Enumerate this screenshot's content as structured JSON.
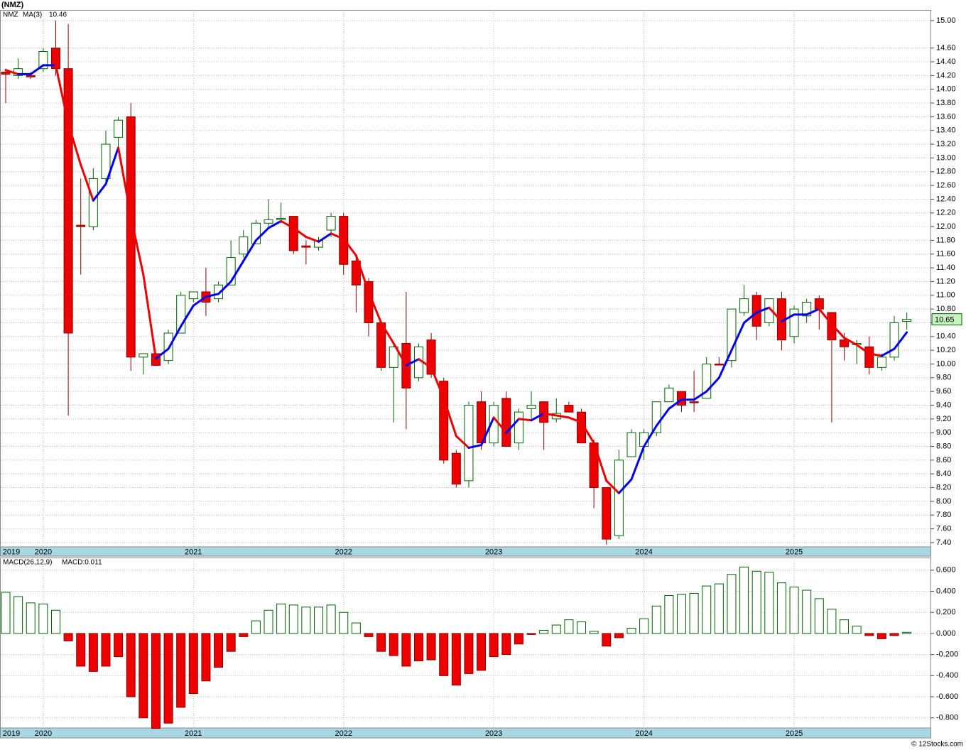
{
  "chart_data": [
    {
      "type": "candlestick",
      "title": "(NMZ)",
      "symbol": "NMZ",
      "categories": [
        "2019",
        null,
        null,
        "2020",
        null,
        null,
        null,
        null,
        null,
        null,
        null,
        null,
        null,
        null,
        null,
        "2021",
        null,
        null,
        null,
        null,
        null,
        null,
        null,
        null,
        null,
        null,
        null,
        "2022",
        null,
        null,
        null,
        null,
        null,
        null,
        null,
        null,
        null,
        null,
        null,
        "2023",
        null,
        null,
        null,
        null,
        null,
        null,
        null,
        null,
        null,
        null,
        null,
        "2024",
        null,
        null,
        null,
        null,
        null,
        null,
        null,
        null,
        null,
        null,
        null,
        "2025",
        null,
        null,
        null,
        null,
        null,
        null,
        null,
        null,
        null
      ],
      "open": [
        14.25,
        14.2,
        14.2,
        14.3,
        14.6,
        14.3,
        12.02,
        12.0,
        12.7,
        13.3,
        13.6,
        10.1,
        10.15,
        10.05,
        10.45,
        10.95,
        11.05,
        10.95,
        11.15,
        11.6,
        11.75,
        12.05,
        12.1,
        12.15,
        11.72,
        11.7,
        11.95,
        12.15,
        11.5,
        11.2,
        10.6,
        9.95,
        10.3,
        9.8,
        10.35,
        9.75,
        8.7,
        8.3,
        9.45,
        8.85,
        9.5,
        8.85,
        9.35,
        9.45,
        9.2,
        9.4,
        9.3,
        8.85,
        8.2,
        7.5,
        8.65,
        8.8,
        9.0,
        9.45,
        9.6,
        9.45,
        9.5,
        10.0,
        10.05,
        10.75,
        11.0,
        10.6,
        10.95,
        10.4,
        10.7,
        10.95,
        10.75,
        10.35,
        10.28,
        10.25,
        9.95,
        10.1,
        10.62
      ],
      "high": [
        14.3,
        14.45,
        14.25,
        14.6,
        15.0,
        14.95,
        12.7,
        12.85,
        13.4,
        13.6,
        13.8,
        10.15,
        10.15,
        10.5,
        11.05,
        11.05,
        11.4,
        11.2,
        11.8,
        11.95,
        12.1,
        12.4,
        12.35,
        12.15,
        11.8,
        11.85,
        12.2,
        12.2,
        11.55,
        11.25,
        10.6,
        10.3,
        11.05,
        10.3,
        10.45,
        9.8,
        8.75,
        9.45,
        9.6,
        9.45,
        9.6,
        9.35,
        9.6,
        9.45,
        9.5,
        9.45,
        9.35,
        8.9,
        8.2,
        8.75,
        9.05,
        9.05,
        9.45,
        9.7,
        9.6,
        9.9,
        10.1,
        10.1,
        10.8,
        11.15,
        11.05,
        10.95,
        11.05,
        10.85,
        10.95,
        11.0,
        10.75,
        10.45,
        10.35,
        10.4,
        10.15,
        10.7,
        10.75
      ],
      "low": [
        13.8,
        14.15,
        14.15,
        14.25,
        14.2,
        9.25,
        11.3,
        11.95,
        12.65,
        13.15,
        9.9,
        9.85,
        9.97,
        10.0,
        10.45,
        10.9,
        10.7,
        10.9,
        11.15,
        11.55,
        11.75,
        12.0,
        12.05,
        11.6,
        11.45,
        11.65,
        11.85,
        11.3,
        10.75,
        10.4,
        9.9,
        9.15,
        9.05,
        9.75,
        9.8,
        8.55,
        8.2,
        8.2,
        8.75,
        8.8,
        8.8,
        8.75,
        9.2,
        8.75,
        9.15,
        9.3,
        8.85,
        7.9,
        7.37,
        7.45,
        8.65,
        8.6,
        8.95,
        9.45,
        9.3,
        9.3,
        9.5,
        10.0,
        9.95,
        10.7,
        10.35,
        10.55,
        10.2,
        10.3,
        10.6,
        10.5,
        9.15,
        10.05,
        10.0,
        9.85,
        9.9,
        10.05,
        10.5
      ],
      "close": [
        14.22,
        14.3,
        14.18,
        14.55,
        14.3,
        10.45,
        12.0,
        12.7,
        13.2,
        13.55,
        10.1,
        10.15,
        9.98,
        10.45,
        11.0,
        11.05,
        10.9,
        11.15,
        11.55,
        11.85,
        12.05,
        12.1,
        12.12,
        11.65,
        11.7,
        11.8,
        12.15,
        11.45,
        11.15,
        10.6,
        9.95,
        10.25,
        9.65,
        10.25,
        9.85,
        8.6,
        8.25,
        9.4,
        8.85,
        9.4,
        8.8,
        9.3,
        9.4,
        9.15,
        9.28,
        9.3,
        8.85,
        8.2,
        7.45,
        8.6,
        9.0,
        9.0,
        9.45,
        9.65,
        9.4,
        9.44,
        10.0,
        9.99,
        10.8,
        10.95,
        10.55,
        10.95,
        10.35,
        10.8,
        10.9,
        10.8,
        10.35,
        10.25,
        10.3,
        9.95,
        10.1,
        10.6,
        10.65
      ],
      "up_color": "#006400",
      "down_color": "#ee0000",
      "ma": {
        "name": "MA(3)",
        "rise_color": "#0000ee",
        "fall_color": "#ee0000",
        "values": [
          14.28,
          14.22,
          14.22,
          14.35,
          14.35,
          13.5,
          12.9,
          12.38,
          12.62,
          13.15,
          12.15,
          11.3,
          10.08,
          10.22,
          10.55,
          10.85,
          10.98,
          11.02,
          11.2,
          11.5,
          11.8,
          11.98,
          12.08,
          11.98,
          11.85,
          11.78,
          11.9,
          11.82,
          11.58,
          11.05,
          10.6,
          10.3,
          9.98,
          10.07,
          9.95,
          9.5,
          8.95,
          8.78,
          8.82,
          9.22,
          9.0,
          9.2,
          9.18,
          9.28,
          9.25,
          9.22,
          9.15,
          8.85,
          8.3,
          8.12,
          8.32,
          8.8,
          9.1,
          9.35,
          9.48,
          9.48,
          9.6,
          9.8,
          10.2,
          10.6,
          10.75,
          10.82,
          10.62,
          10.72,
          10.72,
          10.8,
          10.58,
          10.38,
          10.28,
          10.15,
          10.12,
          10.22,
          10.46
        ]
      },
      "ylim": [
        7.337,
        15.155
      ],
      "yticks": [
        {
          "value": 15.0,
          "label": "15.00"
        },
        {
          "value": 14.6,
          "label": "14.60"
        },
        {
          "value": 14.4,
          "label": "14.40"
        },
        {
          "value": 14.2,
          "label": "14.20"
        },
        {
          "value": 14.0,
          "label": "14.00"
        },
        {
          "value": 13.8,
          "label": "13.80"
        },
        {
          "value": 13.6,
          "label": "13.60"
        },
        {
          "value": 13.4,
          "label": "13.40"
        },
        {
          "value": 13.2,
          "label": "13.20"
        },
        {
          "value": 13.0,
          "label": "13.00"
        },
        {
          "value": 12.8,
          "label": "12.80"
        },
        {
          "value": 12.6,
          "label": "12.60"
        },
        {
          "value": 12.4,
          "label": "12.40"
        },
        {
          "value": 12.2,
          "label": "12.20"
        },
        {
          "value": 12.0,
          "label": "12.00"
        },
        {
          "value": 11.8,
          "label": "11.80"
        },
        {
          "value": 11.6,
          "label": "11.60"
        },
        {
          "value": 11.4,
          "label": "11.40"
        },
        {
          "value": 11.2,
          "label": "11.20"
        },
        {
          "value": 11.0,
          "label": "11.00"
        },
        {
          "value": 10.8,
          "label": "10.80"
        },
        {
          "value": 10.6,
          "label": "10.60"
        },
        {
          "value": 10.4,
          "label": "10.40"
        },
        {
          "value": 10.2,
          "label": "10.20"
        },
        {
          "value": 10.0,
          "label": "10.00"
        },
        {
          "value": 9.8,
          "label": "9.80"
        },
        {
          "value": 9.6,
          "label": "9.60"
        },
        {
          "value": 9.4,
          "label": "9.40"
        },
        {
          "value": 9.2,
          "label": "9.20"
        },
        {
          "value": 9.0,
          "label": "9.00"
        },
        {
          "value": 8.8,
          "label": "8.80"
        },
        {
          "value": 8.6,
          "label": "8.60"
        },
        {
          "value": 8.4,
          "label": "8.40"
        },
        {
          "value": 8.2,
          "label": "8.20"
        },
        {
          "value": 8.0,
          "label": "8.00"
        },
        {
          "value": 7.8,
          "label": "7.80"
        },
        {
          "value": 7.6,
          "label": "7.60"
        },
        {
          "value": 7.4,
          "label": "7.40"
        }
      ],
      "grid": true
    },
    {
      "type": "bar",
      "name": "MACD(26,12,9)",
      "current_label": "MACD:0.011",
      "categories": [
        "2019",
        null,
        null,
        "2020",
        null,
        null,
        null,
        null,
        null,
        null,
        null,
        null,
        null,
        null,
        null,
        "2021",
        null,
        null,
        null,
        null,
        null,
        null,
        null,
        null,
        null,
        null,
        null,
        "2022",
        null,
        null,
        null,
        null,
        null,
        null,
        null,
        null,
        null,
        null,
        null,
        "2023",
        null,
        null,
        null,
        null,
        null,
        null,
        null,
        null,
        null,
        null,
        null,
        "2024",
        null,
        null,
        null,
        null,
        null,
        null,
        null,
        null,
        null,
        null,
        null,
        "2025",
        null,
        null,
        null,
        null,
        null,
        null,
        null,
        null,
        null
      ],
      "values": [
        0.39,
        0.35,
        0.29,
        0.28,
        0.22,
        -0.07,
        -0.31,
        -0.36,
        -0.31,
        -0.22,
        -0.6,
        -0.8,
        -0.9,
        -0.85,
        -0.7,
        -0.57,
        -0.45,
        -0.32,
        -0.17,
        -0.03,
        0.12,
        0.22,
        0.28,
        0.27,
        0.25,
        0.25,
        0.27,
        0.2,
        0.1,
        -0.03,
        -0.17,
        -0.21,
        -0.31,
        -0.26,
        -0.25,
        -0.4,
        -0.49,
        -0.38,
        -0.35,
        -0.22,
        -0.2,
        -0.1,
        -0.01,
        0.03,
        0.08,
        0.13,
        0.11,
        0.02,
        -0.12,
        -0.04,
        0.05,
        0.14,
        0.26,
        0.36,
        0.37,
        0.38,
        0.45,
        0.47,
        0.56,
        0.63,
        0.59,
        0.58,
        0.48,
        0.44,
        0.41,
        0.33,
        0.23,
        0.13,
        0.07,
        -0.02,
        -0.05,
        -0.02,
        0.011
      ],
      "up_color": "#006400",
      "down_color": "#ee0000",
      "ylim": [
        -0.896,
        0.72
      ],
      "yticks": [
        {
          "value": 0.6,
          "label": "0.600"
        },
        {
          "value": 0.4,
          "label": "0.400"
        },
        {
          "value": 0.2,
          "label": "0.200"
        },
        {
          "value": 0,
          "label": "0.000"
        },
        {
          "value": -0.2,
          "label": "-0.200"
        },
        {
          "value": -0.4,
          "label": "-0.400"
        },
        {
          "value": -0.6,
          "label": "-0.600"
        },
        {
          "value": -0.8,
          "label": "-0.800"
        }
      ],
      "grid": true
    }
  ],
  "footer": "© 12Stocks.com"
}
